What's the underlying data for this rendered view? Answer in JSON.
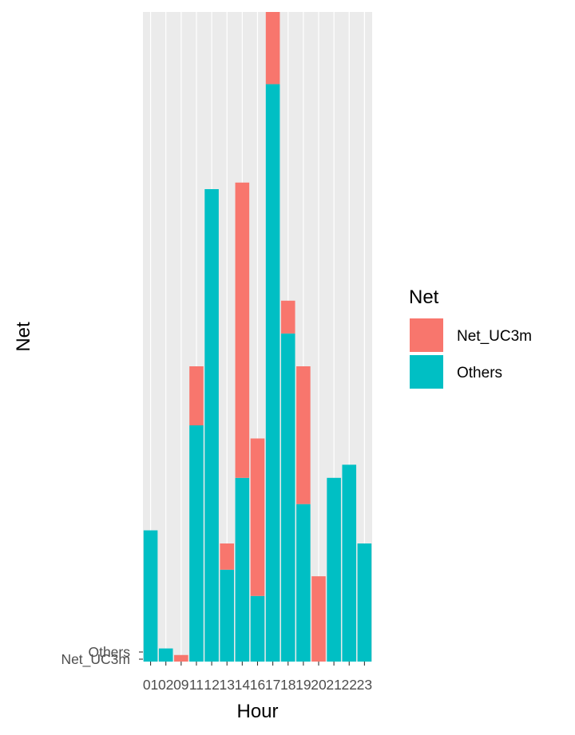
{
  "chart_data": {
    "type": "bar",
    "stacked": true,
    "xlabel": "Hour",
    "ylabel": "Net",
    "categories": [
      "01",
      "02",
      "09",
      "11",
      "12",
      "13",
      "14",
      "16",
      "17",
      "18",
      "19",
      "20",
      "21",
      "22",
      "23"
    ],
    "y_tick_labels": [
      "Net_UC3m",
      "Others"
    ],
    "series": [
      {
        "name": "Others",
        "color": "#00BFC4",
        "values": [
          10,
          1,
          0,
          18,
          36,
          7,
          14,
          5,
          44,
          25,
          12,
          0,
          14,
          15,
          9
        ]
      },
      {
        "name": "Net_UC3m",
        "color": "#F8766D",
        "values": [
          0,
          0,
          0.5,
          4.5,
          0,
          2,
          22.5,
          12,
          5.5,
          2.5,
          10.5,
          6.5,
          0,
          0,
          0
        ]
      }
    ],
    "ylim": [
      0,
      49.5
    ],
    "legend": {
      "title": "Net",
      "position": "right",
      "entries": [
        {
          "label": "Net_UC3m",
          "color": "#F8766D"
        },
        {
          "label": "Others",
          "color": "#00BFC4"
        }
      ]
    },
    "panel_background": "#EBEBEB",
    "grid": true
  }
}
